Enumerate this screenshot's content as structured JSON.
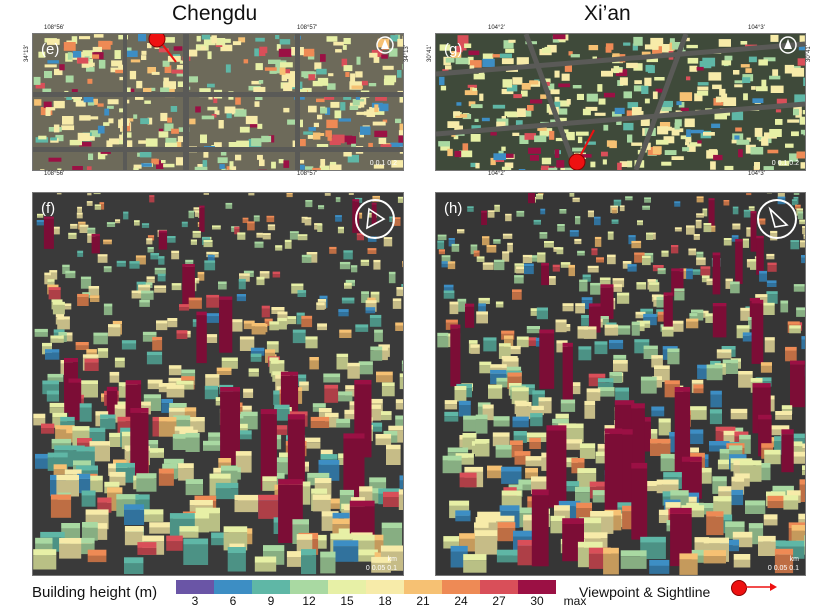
{
  "titles": {
    "left": "Chengdu",
    "right": "Xi’an"
  },
  "panels": {
    "e": {
      "label": "(e)",
      "coords": {
        "top_left": "108°56'",
        "top_right": "108°57'",
        "bottom_left": "108°56'",
        "bottom_right": "108°57'",
        "left": "34°13'",
        "right": "34°13'"
      },
      "scale": "0 0.1 0.2"
    },
    "g": {
      "label": "(g)",
      "coords": {
        "top_left": "104°2'",
        "top_right": "104°3'",
        "bottom_left": "104°2'",
        "bottom_right": "104°3'",
        "left": "30°41'",
        "right": "30°41'"
      },
      "scale": "0 0.1 0.2"
    },
    "f": {
      "label": "(f)",
      "scale_unit": "km",
      "scale": "0  0.05  0.1"
    },
    "h": {
      "label": "(h)",
      "scale_unit": "km",
      "scale": "0  0.05  0.1"
    }
  },
  "legend": {
    "title": "Building height (m)",
    "ticks": [
      "3",
      "6",
      "9",
      "12",
      "15",
      "18",
      "21",
      "24",
      "27",
      "30",
      "max"
    ],
    "colors": [
      "#6a55a6",
      "#3d8ec4",
      "#5fb7a6",
      "#a9d9a2",
      "#e7f0a6",
      "#f7eba9",
      "#f6c173",
      "#ee8a55",
      "#d94f59",
      "#9b1044"
    ]
  },
  "viewpoint": {
    "label": "Viewpoint & Sightline",
    "color": "#ee1111"
  }
}
